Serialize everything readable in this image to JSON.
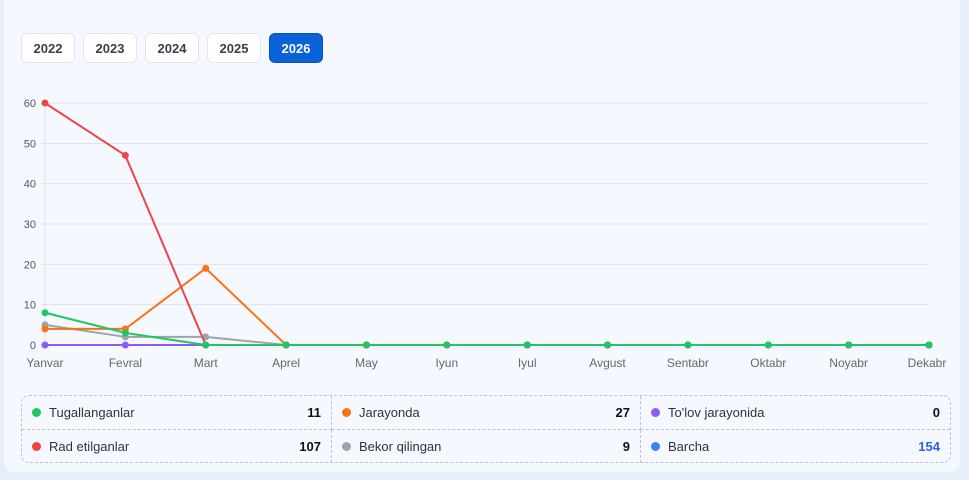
{
  "years": {
    "options": [
      "2022",
      "2023",
      "2024",
      "2025",
      "2026"
    ],
    "selected": "2026"
  },
  "chart_data": {
    "type": "line",
    "categories": [
      "Yanvar",
      "Fevral",
      "Mart",
      "Aprel",
      "May",
      "Iyun",
      "Iyul",
      "Avgust",
      "Sentabr",
      "Oktabr",
      "Noyabr",
      "Dekabr"
    ],
    "yticks": [
      "0",
      "10",
      "20",
      "30",
      "40",
      "50",
      "60"
    ],
    "ylim": [
      0,
      60
    ],
    "grid": true,
    "series": [
      {
        "key": "purple",
        "color": "#8b5cf6",
        "values": [
          0,
          0,
          0,
          0,
          0,
          0,
          0,
          0,
          0,
          0,
          0,
          0
        ]
      },
      {
        "key": "gray",
        "color": "#9ca3af",
        "values": [
          5,
          2,
          2,
          0,
          0,
          0,
          0,
          0,
          0,
          0,
          0,
          0
        ]
      },
      {
        "key": "orange",
        "color": "#f97316",
        "values": [
          4,
          4,
          19,
          0,
          0,
          0,
          0,
          0,
          0,
          0,
          0,
          0
        ]
      },
      {
        "key": "red",
        "color": "#ef4444",
        "values": [
          60,
          47,
          0,
          0,
          0,
          0,
          0,
          0,
          0,
          0,
          0,
          0
        ]
      },
      {
        "key": "green",
        "color": "#22c55e",
        "values": [
          8,
          3,
          0,
          0,
          0,
          0,
          0,
          0,
          0,
          0,
          0,
          0
        ]
      }
    ]
  },
  "legend": [
    {
      "label": "Tugallanganlar",
      "value": "11",
      "color": "#22c55e"
    },
    {
      "label": "Jarayonda",
      "value": "27",
      "color": "#f97316"
    },
    {
      "label": "To'lov jarayonida",
      "value": "0",
      "color": "#8b5cf6"
    },
    {
      "label": "Rad etilganlar",
      "value": "107",
      "color": "#ef4444"
    },
    {
      "label": "Bekor qilingan",
      "value": "9",
      "color": "#9ca3af"
    },
    {
      "label": "Barcha",
      "value": "154",
      "color": "#3b82f6",
      "value_color": "#2f5fe0"
    }
  ]
}
